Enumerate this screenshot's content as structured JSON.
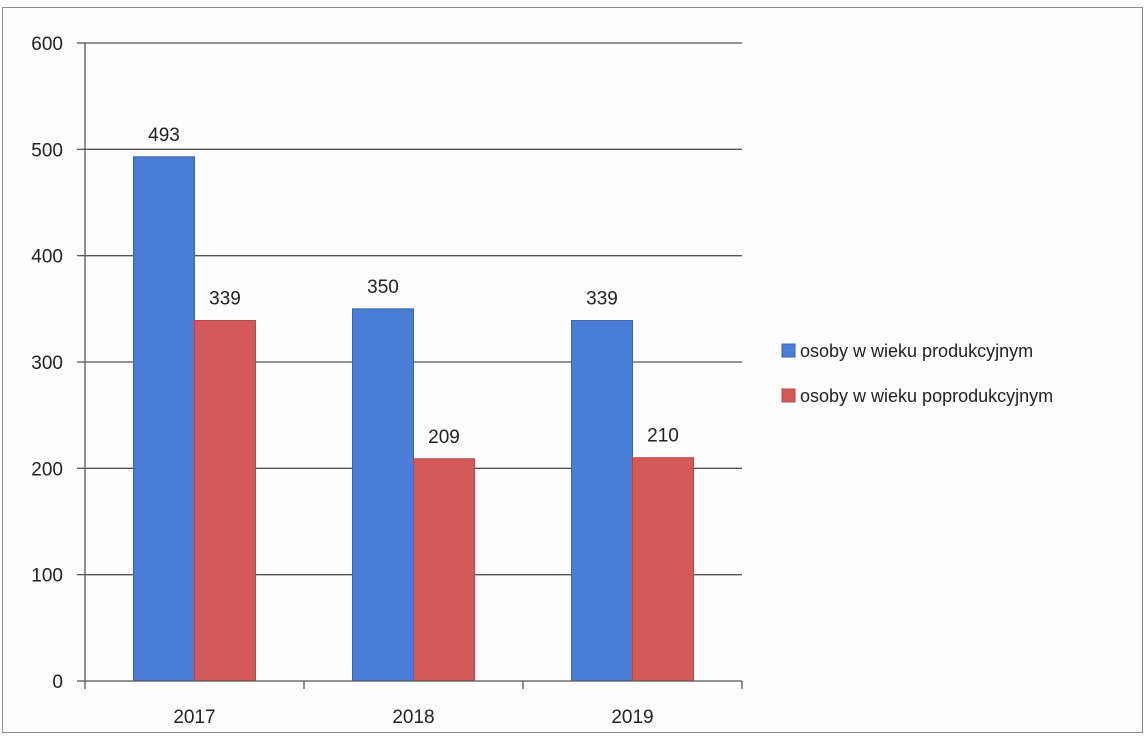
{
  "colors": {
    "series_0": "#4a7dd6",
    "series_1": "#d45a5a",
    "grid": "#555555",
    "axis": "#555555"
  },
  "chart_data": {
    "type": "bar",
    "categories": [
      "2017",
      "2018",
      "2019"
    ],
    "series": [
      {
        "name": "osoby w wieku produkcyjnym",
        "values": [
          493,
          350,
          339
        ]
      },
      {
        "name": "osoby w wieku poprodukcyjnym",
        "values": [
          339,
          209,
          210
        ]
      }
    ],
    "title": "",
    "xlabel": "",
    "ylabel": "",
    "ylim": [
      0,
      600
    ],
    "yticks": [
      0,
      100,
      200,
      300,
      400,
      500,
      600
    ],
    "grid": true,
    "legend_position": "right",
    "data_labels": true
  }
}
